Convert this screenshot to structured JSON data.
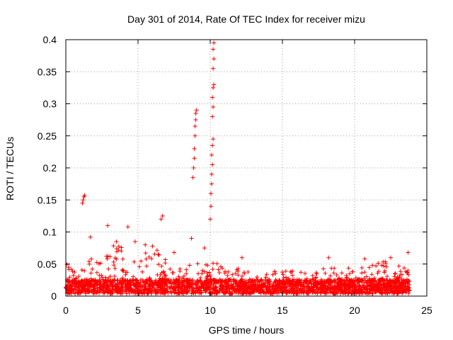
{
  "chart_data": {
    "type": "scatter",
    "title": "Day 301 of 2014, Rate Of TEC Index for receiver mizu",
    "xlabel": "GPS time / hours",
    "ylabel": "ROTI / TECUs",
    "xlim": [
      0,
      25
    ],
    "ylim": [
      0,
      0.4
    ],
    "xticks": [
      0,
      5,
      10,
      15,
      20,
      25
    ],
    "xtick_labels": [
      "0",
      "5",
      "10",
      "15",
      "20",
      "25"
    ],
    "yticks": [
      0,
      0.05,
      0.1,
      0.15,
      0.2,
      0.25,
      0.3,
      0.35,
      0.4
    ],
    "ytick_labels": [
      "0",
      "0.05",
      "0.1",
      "0.15",
      "0.2",
      "0.25",
      "0.3",
      "0.35",
      "0.4"
    ],
    "grid": true,
    "marker": "+",
    "color": "#ff0000",
    "x_range_of_data": [
      0,
      23.8
    ],
    "notable_points": [
      {
        "x": 1.15,
        "y": 0.145
      },
      {
        "x": 1.2,
        "y": 0.15
      },
      {
        "x": 1.25,
        "y": 0.155
      },
      {
        "x": 1.3,
        "y": 0.157
      },
      {
        "x": 2.9,
        "y": 0.11
      },
      {
        "x": 4.3,
        "y": 0.108
      },
      {
        "x": 6.7,
        "y": 0.125
      },
      {
        "x": 6.6,
        "y": 0.12
      },
      {
        "x": 8.8,
        "y": 0.185
      },
      {
        "x": 8.85,
        "y": 0.2
      },
      {
        "x": 8.9,
        "y": 0.215
      },
      {
        "x": 8.9,
        "y": 0.23
      },
      {
        "x": 8.95,
        "y": 0.25
      },
      {
        "x": 8.95,
        "y": 0.265
      },
      {
        "x": 9.0,
        "y": 0.275
      },
      {
        "x": 9.0,
        "y": 0.285
      },
      {
        "x": 9.05,
        "y": 0.29
      },
      {
        "x": 10.0,
        "y": 0.12
      },
      {
        "x": 10.05,
        "y": 0.14
      },
      {
        "x": 10.05,
        "y": 0.16
      },
      {
        "x": 10.1,
        "y": 0.175
      },
      {
        "x": 10.1,
        "y": 0.19
      },
      {
        "x": 10.15,
        "y": 0.205
      },
      {
        "x": 10.1,
        "y": 0.22
      },
      {
        "x": 10.15,
        "y": 0.235
      },
      {
        "x": 10.2,
        "y": 0.245
      },
      {
        "x": 10.15,
        "y": 0.28
      },
      {
        "x": 10.2,
        "y": 0.295
      },
      {
        "x": 10.15,
        "y": 0.31
      },
      {
        "x": 10.2,
        "y": 0.325
      },
      {
        "x": 10.25,
        "y": 0.33
      },
      {
        "x": 10.2,
        "y": 0.355
      },
      {
        "x": 10.25,
        "y": 0.37
      },
      {
        "x": 10.2,
        "y": 0.385
      },
      {
        "x": 10.25,
        "y": 0.395
      },
      {
        "x": 1.7,
        "y": 0.092
      },
      {
        "x": 3.5,
        "y": 0.085
      },
      {
        "x": 4.8,
        "y": 0.085
      },
      {
        "x": 5.5,
        "y": 0.08
      },
      {
        "x": 7.5,
        "y": 0.068
      },
      {
        "x": 8.7,
        "y": 0.09
      },
      {
        "x": 9.6,
        "y": 0.075
      },
      {
        "x": 12.2,
        "y": 0.06
      },
      {
        "x": 18.2,
        "y": 0.06
      },
      {
        "x": 20.7,
        "y": 0.058
      },
      {
        "x": 22.5,
        "y": 0.06
      },
      {
        "x": 23.7,
        "y": 0.068
      }
    ],
    "baseline_envelope": [
      {
        "x": 0,
        "y_max": 0.05
      },
      {
        "x": 1,
        "y_max": 0.035
      },
      {
        "x": 2,
        "y_max": 0.06
      },
      {
        "x": 3,
        "y_max": 0.075
      },
      {
        "x": 4,
        "y_max": 0.075
      },
      {
        "x": 5,
        "y_max": 0.06
      },
      {
        "x": 6,
        "y_max": 0.075
      },
      {
        "x": 7,
        "y_max": 0.06
      },
      {
        "x": 8,
        "y_max": 0.04
      },
      {
        "x": 9,
        "y_max": 0.05
      },
      {
        "x": 10,
        "y_max": 0.06
      },
      {
        "x": 11,
        "y_max": 0.04
      },
      {
        "x": 12,
        "y_max": 0.045
      },
      {
        "x": 13,
        "y_max": 0.035
      },
      {
        "x": 14,
        "y_max": 0.03
      },
      {
        "x": 15,
        "y_max": 0.04
      },
      {
        "x": 16,
        "y_max": 0.035
      },
      {
        "x": 17,
        "y_max": 0.03
      },
      {
        "x": 18,
        "y_max": 0.045
      },
      {
        "x": 19,
        "y_max": 0.04
      },
      {
        "x": 20,
        "y_max": 0.045
      },
      {
        "x": 21,
        "y_max": 0.045
      },
      {
        "x": 22,
        "y_max": 0.05
      },
      {
        "x": 23,
        "y_max": 0.05
      },
      {
        "x": 23.8,
        "y_max": 0.06
      }
    ]
  }
}
